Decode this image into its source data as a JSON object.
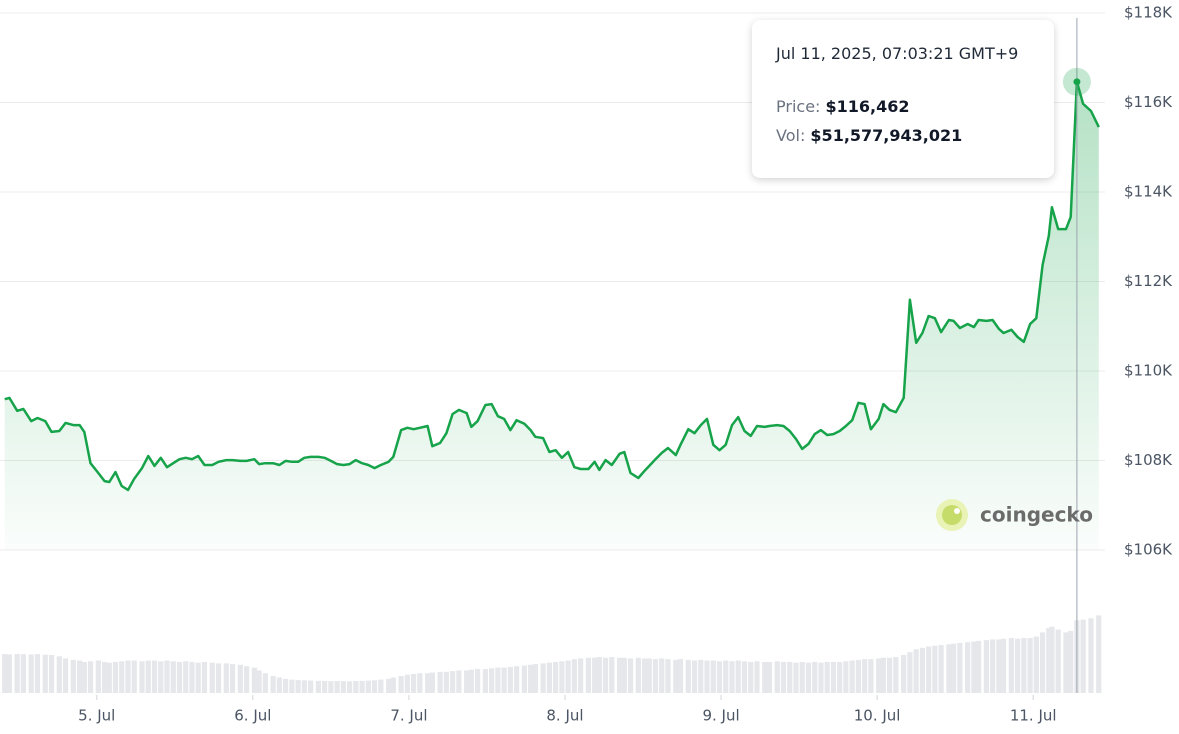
{
  "chart_data": {
    "type": "line",
    "x": [
      4.41,
      4.44,
      4.49,
      4.53,
      4.58,
      4.62,
      4.67,
      4.71,
      4.76,
      4.8,
      4.85,
      4.89,
      4.92,
      4.96,
      5.01,
      5.05,
      5.08,
      5.12,
      5.16,
      5.2,
      5.24,
      5.29,
      5.33,
      5.37,
      5.41,
      5.45,
      5.49,
      5.53,
      5.57,
      5.61,
      5.65,
      5.69,
      5.74,
      5.78,
      5.83,
      5.87,
      5.92,
      5.96,
      6.01,
      6.04,
      6.08,
      6.13,
      6.17,
      6.21,
      6.25,
      6.29,
      6.33,
      6.37,
      6.42,
      6.46,
      6.5,
      6.54,
      6.58,
      6.62,
      6.66,
      6.7,
      6.74,
      6.78,
      6.82,
      6.87,
      6.9,
      6.95,
      6.99,
      7.03,
      7.07,
      7.12,
      7.15,
      7.2,
      7.24,
      7.28,
      7.32,
      7.37,
      7.4,
      7.44,
      7.49,
      7.53,
      7.57,
      7.61,
      7.65,
      7.69,
      7.74,
      7.78,
      7.81,
      7.86,
      7.9,
      7.94,
      7.98,
      8.02,
      8.06,
      8.1,
      8.15,
      8.19,
      8.22,
      8.26,
      8.3,
      8.35,
      8.38,
      8.42,
      8.47,
      8.51,
      8.54,
      8.58,
      8.62,
      8.66,
      8.71,
      8.74,
      8.79,
      8.83,
      8.87,
      8.91,
      8.95,
      8.99,
      9.03,
      9.07,
      9.11,
      9.15,
      9.19,
      9.23,
      9.28,
      9.31,
      9.36,
      9.4,
      9.44,
      9.48,
      9.52,
      9.56,
      9.6,
      9.64,
      9.68,
      9.72,
      9.76,
      9.8,
      9.84,
      9.88,
      9.92,
      9.96,
      10.01,
      10.04,
      10.08,
      10.12,
      10.17,
      10.21,
      10.25,
      10.29,
      10.33,
      10.37,
      10.41,
      10.46,
      10.49,
      10.53,
      10.58,
      10.62,
      10.65,
      10.7,
      10.74,
      10.78,
      10.81,
      10.86,
      10.9,
      10.94,
      10.98,
      11.02,
      11.06,
      11.1,
      11.12,
      11.16,
      11.21,
      11.24,
      11.28,
      11.32,
      11.37,
      11.42
    ],
    "xlim": [
      4.38,
      11.46
    ],
    "xticks": [
      {
        "value": 5,
        "label": "5. Jul"
      },
      {
        "value": 6,
        "label": "6. Jul"
      },
      {
        "value": 7,
        "label": "7. Jul"
      },
      {
        "value": 8,
        "label": "8. Jul"
      },
      {
        "value": 9,
        "label": "9. Jul"
      },
      {
        "value": 10,
        "label": "10. Jul"
      },
      {
        "value": 11,
        "label": "11. Jul"
      }
    ],
    "price": {
      "color": "#16a34a",
      "values": [
        109370,
        109400,
        109110,
        109150,
        108880,
        108950,
        108880,
        108640,
        108660,
        108840,
        108790,
        108790,
        108640,
        107940,
        107720,
        107540,
        107520,
        107740,
        107430,
        107340,
        107590,
        107830,
        108100,
        107880,
        108060,
        107850,
        107940,
        108030,
        108060,
        108030,
        108100,
        107900,
        107900,
        107970,
        108010,
        108010,
        107990,
        107990,
        108030,
        107920,
        107940,
        107940,
        107900,
        107990,
        107970,
        107970,
        108060,
        108080,
        108080,
        108060,
        107990,
        107920,
        107900,
        107920,
        108010,
        107940,
        107900,
        107830,
        107900,
        107970,
        108080,
        108680,
        108730,
        108700,
        108730,
        108770,
        108320,
        108390,
        108610,
        109040,
        109130,
        109060,
        108750,
        108880,
        109240,
        109260,
        108990,
        108930,
        108680,
        108900,
        108820,
        108680,
        108530,
        108500,
        108190,
        108230,
        108060,
        108190,
        107850,
        107810,
        107810,
        107970,
        107790,
        108010,
        107900,
        108150,
        108190,
        107720,
        107610,
        107770,
        107880,
        108030,
        108170,
        108280,
        108120,
        108350,
        108700,
        108610,
        108790,
        108930,
        108350,
        108230,
        108350,
        108790,
        108970,
        108660,
        108550,
        108770,
        108750,
        108770,
        108790,
        108770,
        108660,
        108480,
        108260,
        108370,
        108590,
        108680,
        108570,
        108590,
        108660,
        108770,
        108900,
        109290,
        109260,
        108700,
        108930,
        109260,
        109130,
        109080,
        109400,
        111590,
        110630,
        110850,
        111230,
        111180,
        110870,
        111140,
        111120,
        110960,
        111050,
        110980,
        111140,
        111120,
        111140,
        110940,
        110850,
        110920,
        110760,
        110650,
        111050,
        111180,
        112370,
        113020,
        113660,
        113170,
        113170,
        113440,
        116462,
        115970,
        115810,
        115450
      ]
    },
    "volume": {
      "color": "#e5e7eb",
      "values": [
        27600000000.0,
        27400000000.0,
        27700000000.0,
        27500000000.0,
        27300000000.0,
        27600000000.0,
        27200000000.0,
        27000000000.0,
        26000000000.0,
        24500000000.0,
        23500000000.0,
        23000000000.0,
        22000000000.0,
        22500000000.0,
        23000000000.0,
        22000000000.0,
        21500000000.0,
        22000000000.0,
        22500000000.0,
        23000000000.0,
        23000000000.0,
        22500000000.0,
        23000000000.0,
        23000000000.0,
        22500000000.0,
        23000000000.0,
        22500000000.0,
        22000000000.0,
        22500000000.0,
        22000000000.0,
        21500000000.0,
        22000000000.0,
        21500000000.0,
        21000000000.0,
        21000000000.0,
        20500000000.0,
        20000000000.0,
        19000000000.0,
        18000000000.0,
        16000000000.0,
        14000000000.0,
        12000000000.0,
        11000000000.0,
        10000000000.0,
        9500000000.0,
        9200000000.0,
        9000000000.0,
        8800000000.0,
        8600000000.0,
        8500000000.0,
        8400000000.0,
        8500000000.0,
        8400000000.0,
        8300000000.0,
        8500000000.0,
        8600000000.0,
        8800000000.0,
        9000000000.0,
        9500000000.0,
        10000000000.0,
        11000000000.0,
        12000000000.0,
        13000000000.0,
        13500000000.0,
        14000000000.0,
        14000000000.0,
        14500000000.0,
        15000000000.0,
        15000000000.0,
        15500000000.0,
        16000000000.0,
        16000000000.0,
        16500000000.0,
        17000000000.0,
        17000000000.0,
        17500000000.0,
        18000000000.0,
        18000000000.0,
        18500000000.0,
        19000000000.0,
        19500000000.0,
        20000000000.0,
        20500000000.0,
        21000000000.0,
        21500000000.0,
        22000000000.0,
        22500000000.0,
        23000000000.0,
        24000000000.0,
        24500000000.0,
        25000000000.0,
        25000000000.0,
        25500000000.0,
        25000000000.0,
        25500000000.0,
        25000000000.0,
        25000000000.0,
        24500000000.0,
        25000000000.0,
        24500000000.0,
        24500000000.0,
        24000000000.0,
        24500000000.0,
        24000000000.0,
        23500000000.0,
        24000000000.0,
        23500000000.0,
        23000000000.0,
        23500000000.0,
        23000000000.0,
        23000000000.0,
        22500000000.0,
        23000000000.0,
        22500000000.0,
        23000000000.0,
        22500000000.0,
        22000000000.0,
        22500000000.0,
        22000000000.0,
        22000000000.0,
        22500000000.0,
        22000000000.0,
        22000000000.0,
        21500000000.0,
        22000000000.0,
        21500000000.0,
        22000000000.0,
        21500000000.0,
        22000000000.0,
        22000000000.0,
        22000000000.0,
        22500000000.0,
        23000000000.0,
        23500000000.0,
        24000000000.0,
        24000000000.0,
        24500000000.0,
        25000000000.0,
        25000000000.0,
        25500000000.0,
        27000000000.0,
        29000000000.0,
        31000000000.0,
        32000000000.0,
        33000000000.0,
        33500000000.0,
        34000000000.0,
        34500000000.0,
        35000000000.0,
        35500000000.0,
        36000000000.0,
        36500000000.0,
        37000000000.0,
        37500000000.0,
        38000000000.0,
        38000000000.0,
        38500000000.0,
        39000000000.0,
        38500000000.0,
        39000000000.0,
        39000000000.0,
        40000000000.0,
        43000000000.0,
        46000000000.0,
        47000000000.0,
        45000000000.0,
        43000000000.0,
        44000000000.0,
        51577943021,
        52000000000.0,
        53000000000.0,
        55000000000.0
      ]
    },
    "ylim": [
      106000,
      118000
    ],
    "yticks": [
      {
        "value": 106000,
        "label": "$106K"
      },
      {
        "value": 108000,
        "label": "$108K"
      },
      {
        "value": 110000,
        "label": "$110K"
      },
      {
        "value": 112000,
        "label": "$112K"
      },
      {
        "value": 114000,
        "label": "$114K"
      },
      {
        "value": 116000,
        "label": "$116K"
      },
      {
        "value": 118000,
        "label": "$118K"
      }
    ],
    "y2lim": [
      0,
      100000000000
    ],
    "grid": true,
    "tooltip": {
      "title": "Jul 11, 2025, 07:03:21 GMT+9",
      "price_label": "Price:",
      "price": "$116,462",
      "volume_label": "Vol:",
      "volume": "$51,577,943,021"
    },
    "watermark": "coingecko"
  }
}
